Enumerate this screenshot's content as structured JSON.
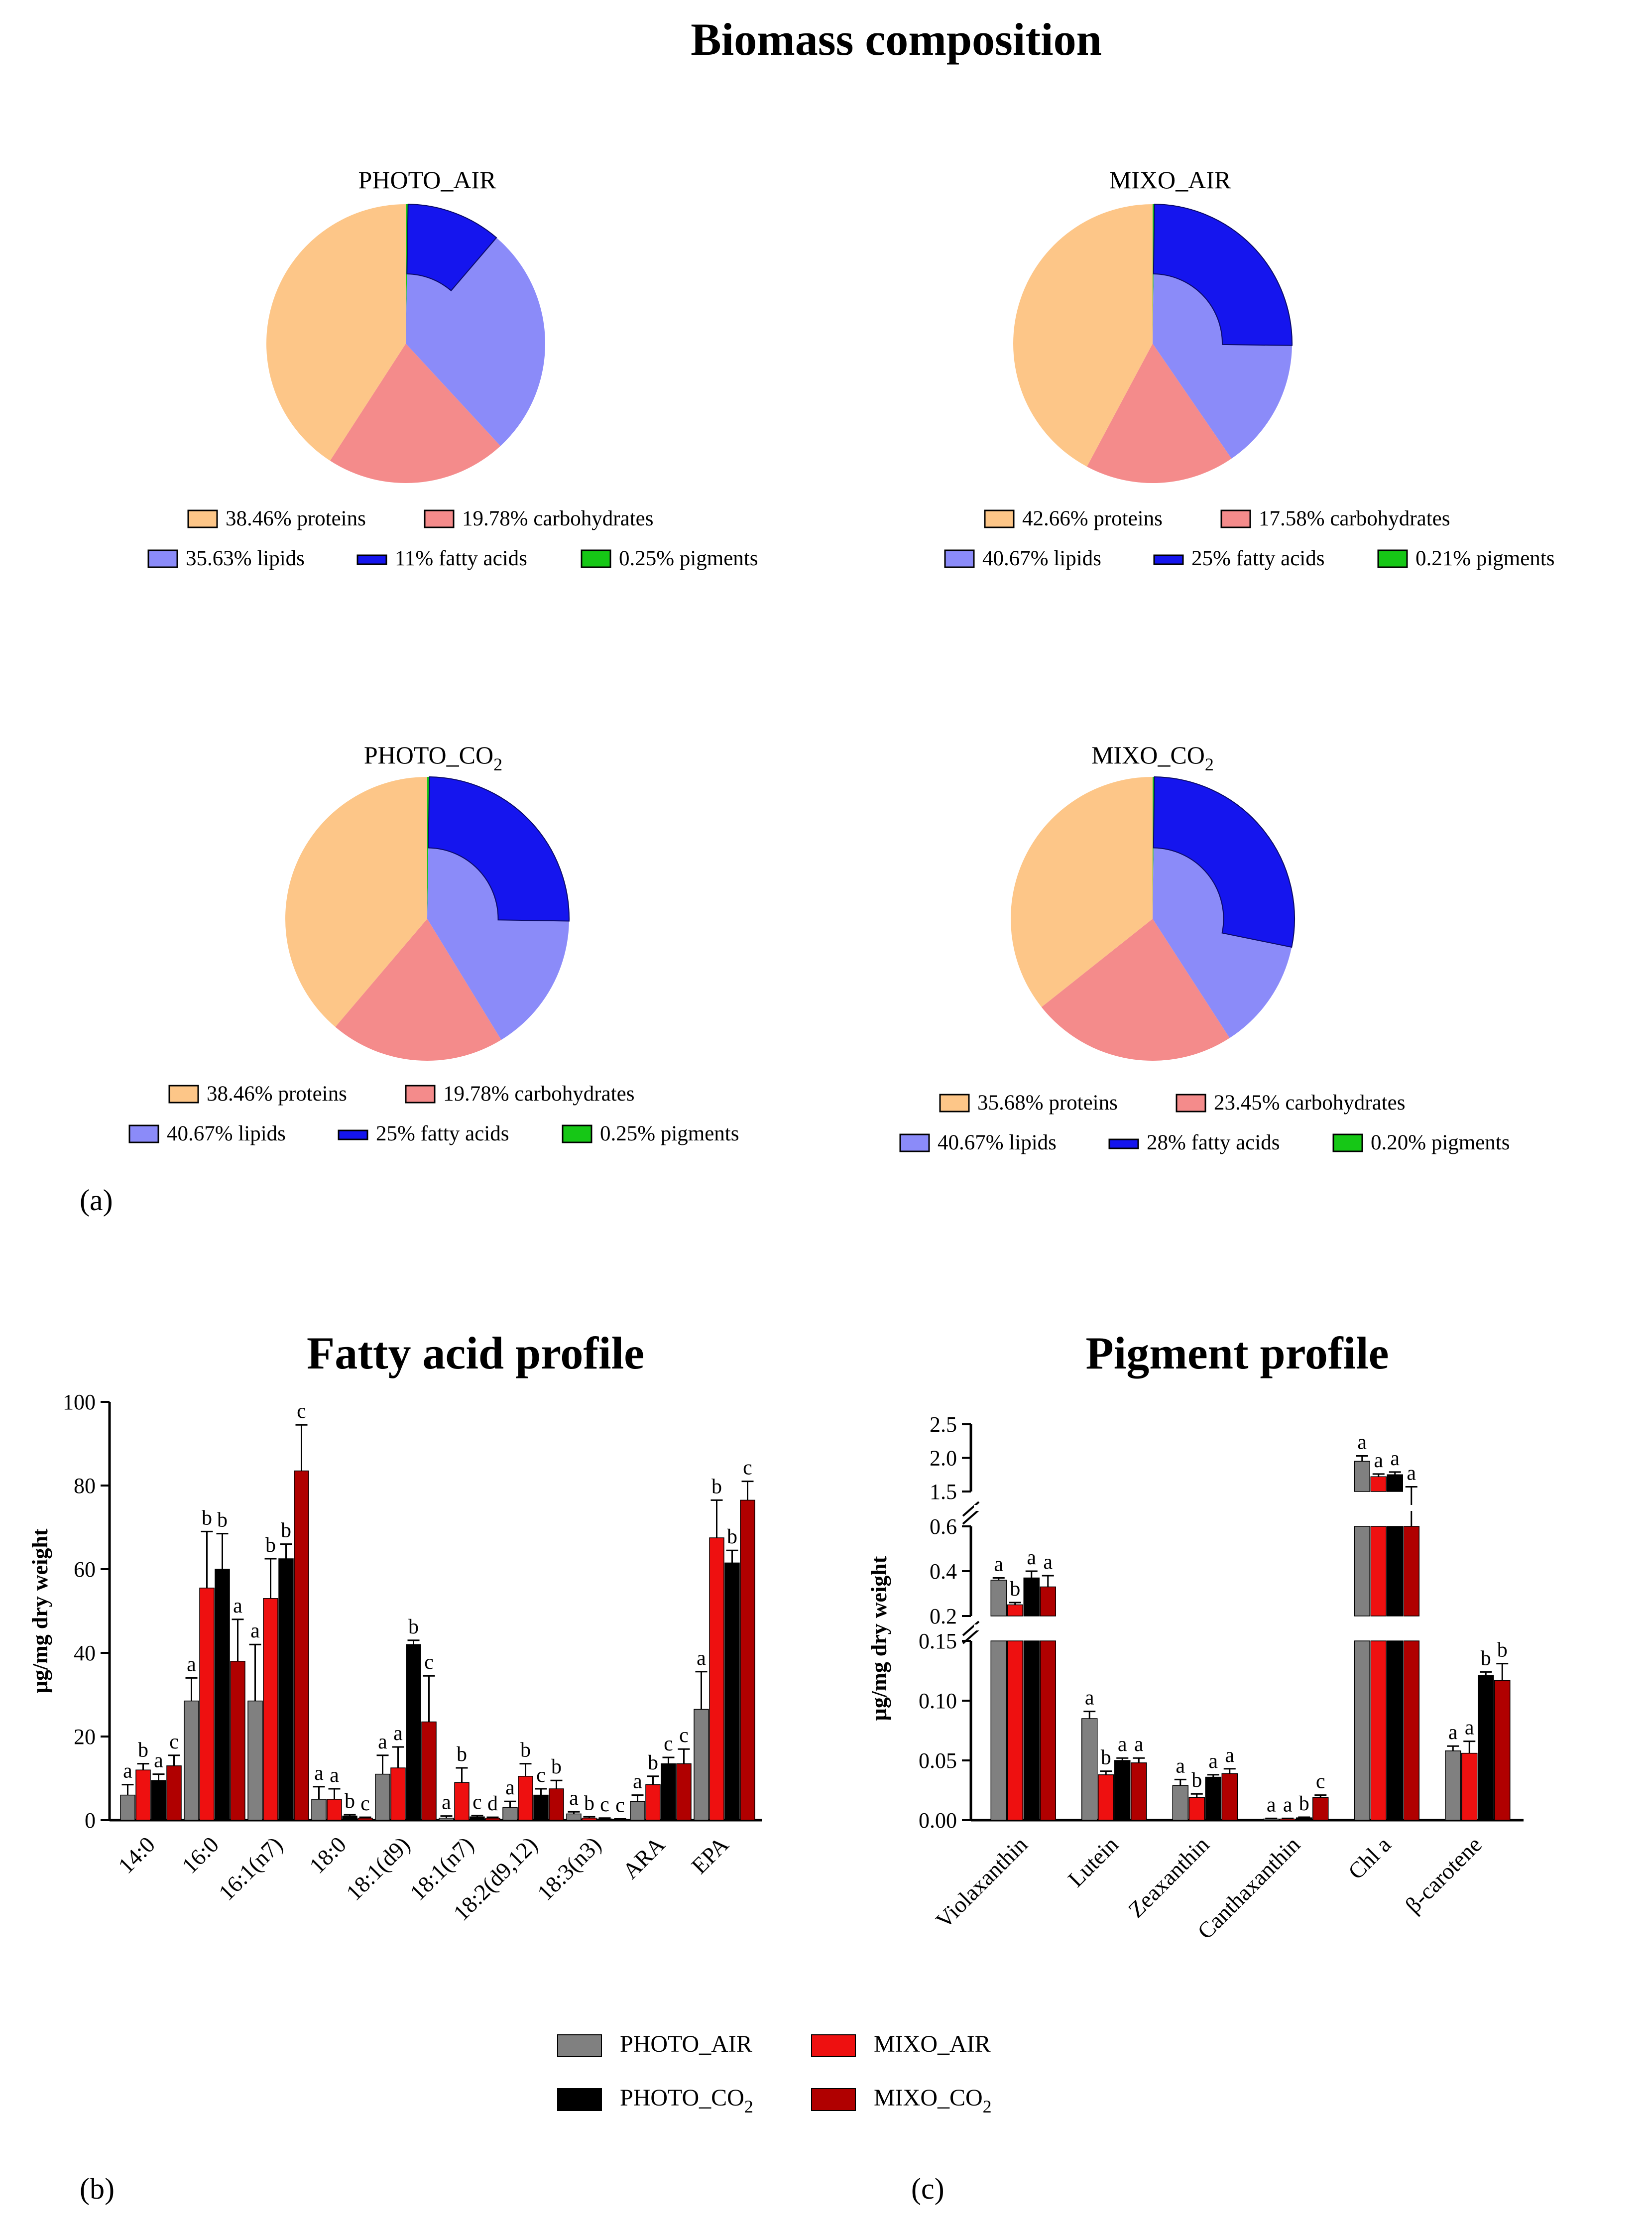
{
  "colors": {
    "proteins": "#FDC688",
    "carbohydrates": "#F48B8B",
    "lipids": "#8B8BF9",
    "fatty_acids": "#1515EE",
    "pigments": "#16C716",
    "PHOTO_AIR": "#808080",
    "MIXO_AIR": "#EE1010",
    "PHOTO_CO2": "#000000",
    "MIXO_CO2": "#B00000"
  },
  "titles": {
    "biomass": "Biomass composition",
    "fatty": "Fatty acid profile",
    "pigment": "Pigment profile"
  },
  "panels": {
    "a": "(a)",
    "b": "(b)",
    "c": "(c)"
  },
  "chart_data": [
    {
      "type": "pie",
      "title": "PHOTO_AIR",
      "slices": [
        {
          "label": "proteins",
          "value": 38.46,
          "text": "38.46%  proteins"
        },
        {
          "label": "carbohydrates",
          "value": 19.78,
          "text": "19.78%  carbohydrates"
        },
        {
          "label": "lipids",
          "value": 35.63,
          "text": "35.63%  lipids"
        },
        {
          "label": "pigments",
          "value": 0.25,
          "text": "0.25%  pigments"
        }
      ],
      "inner": {
        "label": "fatty acids",
        "value": 11,
        "text": "11% fatty acids"
      }
    },
    {
      "type": "pie",
      "title": "MIXO_AIR",
      "slices": [
        {
          "label": "proteins",
          "value": 42.66,
          "text": "42.66%  proteins"
        },
        {
          "label": "carbohydrates",
          "value": 17.58,
          "text": "17.58%  carbohydrates"
        },
        {
          "label": "lipids",
          "value": 40.67,
          "text": "40.67%  lipids"
        },
        {
          "label": "pigments",
          "value": 0.21,
          "text": "0.21%  pigments"
        }
      ],
      "inner": {
        "label": "fatty acids",
        "value": 25,
        "text": "25% fatty acids"
      }
    },
    {
      "type": "pie",
      "title": "PHOTO_CO2",
      "slices": [
        {
          "label": "proteins",
          "value": 38.46,
          "text": "38.46%  proteins"
        },
        {
          "label": "carbohydrates",
          "value": 19.78,
          "text": "19.78%  carbohydrates"
        },
        {
          "label": "lipids",
          "value": 40.67,
          "text": "40.67%  lipids"
        },
        {
          "label": "pigments",
          "value": 0.25,
          "text": "0.25%  pigments"
        }
      ],
      "inner": {
        "label": "fatty acids",
        "value": 25,
        "text": "25% fatty acids"
      }
    },
    {
      "type": "pie",
      "title": "MIXO_CO2",
      "slices": [
        {
          "label": "proteins",
          "value": 35.68,
          "text": "35.68%  proteins"
        },
        {
          "label": "carbohydrates",
          "value": 23.45,
          "text": "23.45%  carbohydrates"
        },
        {
          "label": "lipids",
          "value": 40.67,
          "text": "40.67%  lipids"
        },
        {
          "label": "pigments",
          "value": 0.2,
          "text": "0.20%  pigments"
        }
      ],
      "inner": {
        "label": "fatty acids",
        "value": 28,
        "text": "28% fatty acids"
      }
    },
    {
      "type": "bar",
      "title": "Fatty acid profile",
      "ylabel": "µg/mg dry weight",
      "ylim": [
        0,
        100
      ],
      "yticks": [
        0,
        20,
        40,
        60,
        80,
        100
      ],
      "categories": [
        "14:0",
        "16:0",
        "16:1(n7)",
        "18:0",
        "18:1(d9)",
        "18:1(n7)",
        "18:2(d9,12)",
        "18:3(n3)",
        "ARA",
        "EPA"
      ],
      "series": [
        {
          "name": "PHOTO_AIR",
          "values": [
            6,
            28.5,
            28.5,
            5,
            11,
            0.5,
            3,
            1.5,
            4.5,
            26.5
          ],
          "errors": [
            2.5,
            5.5,
            13.5,
            3,
            4.5,
            0.5,
            1.5,
            0.5,
            1.5,
            9
          ],
          "letters": [
            "a",
            "a",
            "a",
            "a",
            "a",
            "a",
            "a",
            "a",
            "a",
            "a"
          ]
        },
        {
          "name": "MIXO_AIR",
          "values": [
            12,
            55.5,
            53,
            5,
            12.5,
            9,
            10.5,
            0.5,
            8.5,
            67.5
          ],
          "errors": [
            1.5,
            13.5,
            9.5,
            2.5,
            5,
            3.5,
            3,
            0.3,
            2,
            9
          ],
          "letters": [
            "b",
            "b",
            "b",
            "a",
            "a",
            "b",
            "b",
            "b",
            "b",
            "b"
          ]
        },
        {
          "name": "PHOTO_CO2",
          "values": [
            9.5,
            60,
            62.5,
            1,
            42,
            0.8,
            6,
            0.3,
            13.5,
            61.5
          ],
          "errors": [
            1.5,
            8.5,
            3.5,
            0.3,
            1,
            0.3,
            1.5,
            0.2,
            1.5,
            3
          ],
          "letters": [
            "a",
            "b",
            "b",
            "b",
            "b",
            "c",
            "c",
            "c",
            "c",
            "b"
          ]
        },
        {
          "name": "MIXO_CO2",
          "values": [
            13,
            38,
            83.5,
            0.5,
            23.5,
            0.5,
            7.5,
            0.2,
            13.5,
            76.5
          ],
          "errors": [
            2.5,
            10,
            11,
            0.2,
            11,
            0.2,
            2,
            0.1,
            3.5,
            4.5
          ],
          "letters": [
            "c",
            "a",
            "c",
            "c",
            "c",
            "d",
            "b",
            "c",
            "c",
            "c"
          ]
        }
      ]
    },
    {
      "type": "bar",
      "title": "Pigment profile",
      "ylabel": "µg/mg dry weight",
      "broken_axis": [
        [
          0,
          0.15
        ],
        [
          0.2,
          0.6
        ],
        [
          1.5,
          2.5
        ]
      ],
      "yticks": [
        "0.00",
        "0.05",
        "0.10",
        "0.15",
        "0.2",
        "0.4",
        "0.6",
        "1.5",
        "2.0",
        "2.5"
      ],
      "categories": [
        "Violaxanthin",
        "Lutein",
        "Zeaxanthin",
        "Canthaxanthin",
        "Chl a",
        "β-carotene"
      ],
      "series": [
        {
          "name": "PHOTO_AIR",
          "values": [
            0.36,
            0.085,
            0.029,
            0.001,
            1.95,
            0.058
          ],
          "errors": [
            0.01,
            0.006,
            0.005,
            0.0005,
            0.08,
            0.004
          ],
          "letters": [
            "a",
            "a",
            "a",
            "a",
            "a",
            "a"
          ]
        },
        {
          "name": "MIXO_AIR",
          "values": [
            0.25,
            0.038,
            0.019,
            0.001,
            1.72,
            0.056
          ],
          "errors": [
            0.01,
            0.003,
            0.003,
            0.0005,
            0.04,
            0.01
          ],
          "letters": [
            "b",
            "b",
            "b",
            "a",
            "a",
            "a"
          ]
        },
        {
          "name": "PHOTO_CO2",
          "values": [
            0.37,
            0.05,
            0.036,
            0.002,
            1.75,
            0.121
          ],
          "errors": [
            0.03,
            0.002,
            0.002,
            0.0005,
            0.04,
            0.003
          ],
          "letters": [
            "a",
            "a",
            "a",
            "b",
            "a",
            "b"
          ]
        },
        {
          "name": "MIXO_CO2",
          "values": [
            0.33,
            0.048,
            0.039,
            0.019,
            1.42,
            0.117
          ],
          "errors": [
            0.05,
            0.004,
            0.004,
            0.002,
            0.15,
            0.014
          ],
          "letters": [
            "a",
            "a",
            "a",
            "c",
            "a",
            "b"
          ]
        }
      ]
    }
  ],
  "legend": {
    "PHOTO_AIR": "PHOTO_AIR",
    "MIXO_AIR": "MIXO_AIR",
    "PHOTO_CO2": "PHOTO_CO",
    "MIXO_CO2": "MIXO_CO",
    "subscript": "2"
  }
}
